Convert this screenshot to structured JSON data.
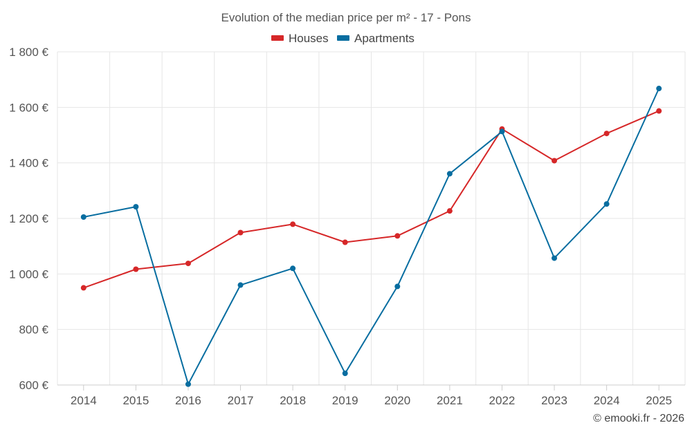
{
  "chart_data": {
    "type": "line",
    "title": "Evolution of the median price per m² - 17 - Pons",
    "categories": [
      "2014",
      "2015",
      "2016",
      "2017",
      "2018",
      "2019",
      "2020",
      "2021",
      "2022",
      "2023",
      "2024",
      "2025"
    ],
    "series": [
      {
        "name": "Houses",
        "color": "#d62728",
        "values": [
          950,
          1017,
          1038,
          1149,
          1179,
          1114,
          1137,
          1227,
          1522,
          1408,
          1506,
          1587
        ]
      },
      {
        "name": "Apartments",
        "color": "#076da0",
        "values": [
          1205,
          1242,
          603,
          960,
          1020,
          642,
          955,
          1361,
          1513,
          1057,
          1252,
          1668
        ]
      }
    ],
    "ylim": [
      600,
      1800
    ],
    "yticks": [
      600,
      800,
      1000,
      1200,
      1400,
      1600,
      1800
    ],
    "ytick_labels": [
      "600 €",
      "800 €",
      "1 000 €",
      "1 200 €",
      "1 400 €",
      "1 600 €",
      "1 800 €"
    ],
    "grid": true,
    "legend_position": "top-center",
    "xlabel": "",
    "ylabel": ""
  },
  "footer": {
    "credit": "© emooki.fr - 2026"
  }
}
